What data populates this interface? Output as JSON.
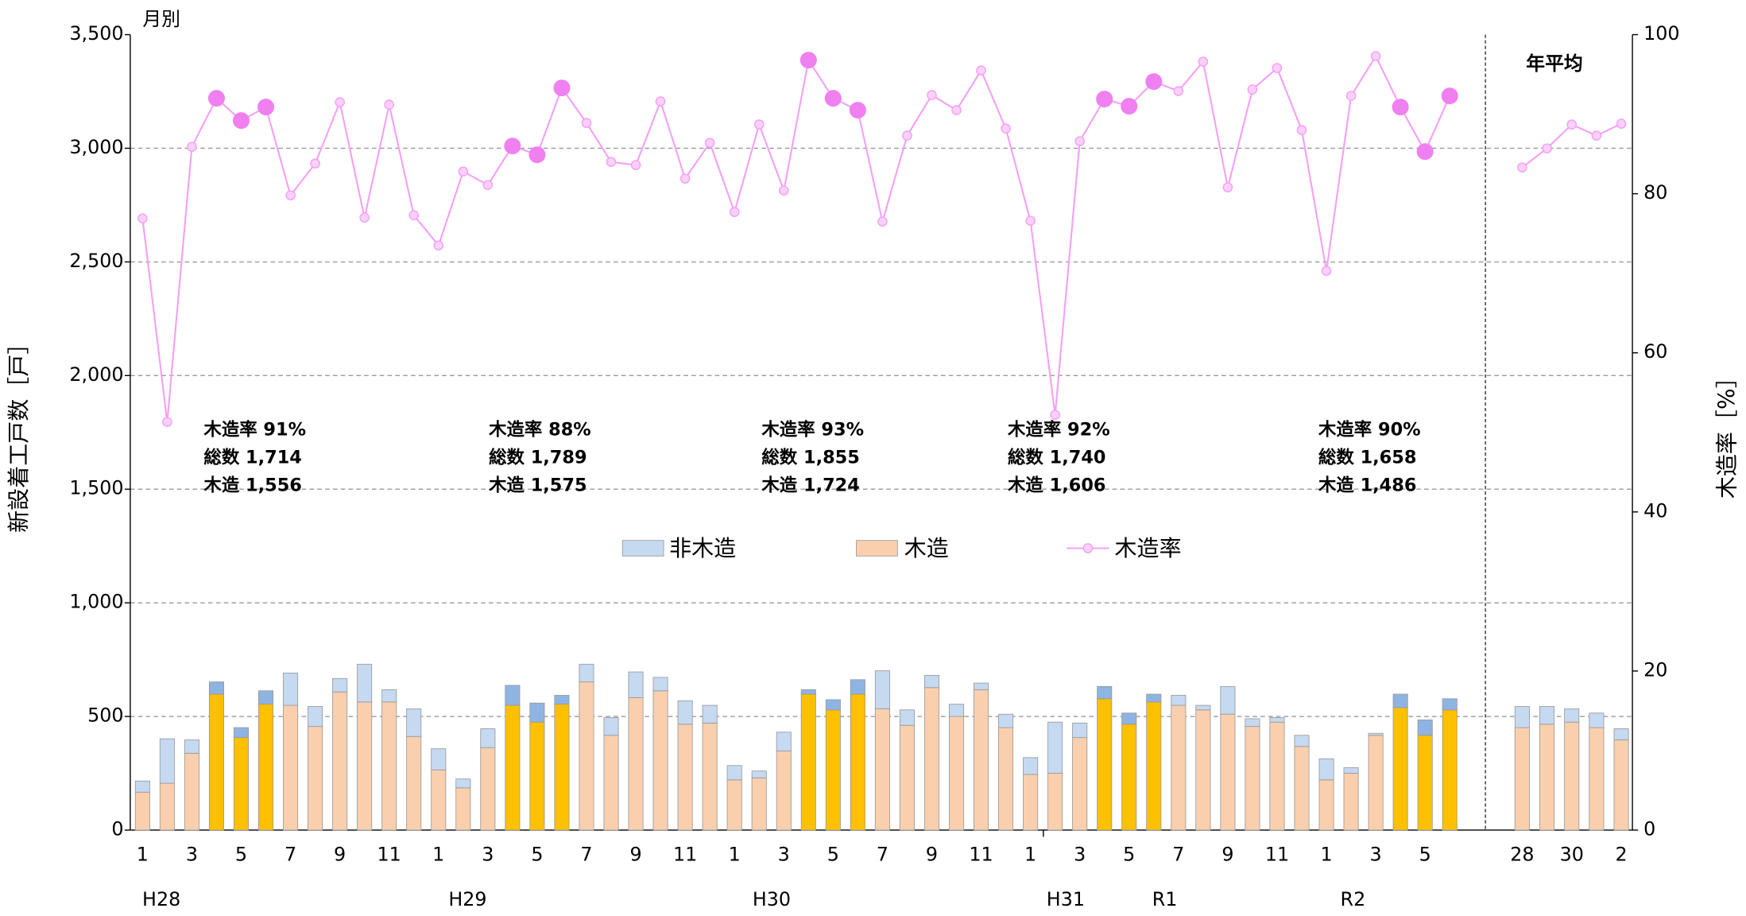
{
  "chart_data": {
    "type": "bar",
    "monthly_label": "月別",
    "annual_label": "年平均",
    "ylabel": "新設着工戸数［戸］",
    "y2label": "木造率［%］",
    "categories": [
      "1",
      null,
      "3",
      null,
      "5",
      null,
      "7",
      null,
      "9",
      null,
      "11",
      null,
      "1",
      null,
      "3",
      null,
      "5",
      null,
      "7",
      null,
      "9",
      null,
      "11",
      null,
      "1",
      null,
      "3",
      null,
      "5",
      null,
      "7",
      null,
      "9",
      null,
      "11",
      null,
      "1",
      null,
      "3",
      null,
      "5",
      null,
      "7",
      null,
      "9",
      null,
      "11",
      null,
      "1",
      null,
      "3",
      null,
      "5",
      null
    ],
    "annual_categories": [
      "28",
      null,
      "30",
      null,
      "2"
    ],
    "period_labels": [
      "H28",
      "H29",
      "H30",
      "H31",
      "R1",
      "R2"
    ],
    "highlight": [
      3,
      4,
      5,
      15,
      16,
      17,
      27,
      28,
      29,
      39,
      40,
      41,
      51,
      52,
      53
    ],
    "series": [
      {
        "name": "非木造",
        "color": "#c5d9f1",
        "highlight_color": "#8eb4e3",
        "values": [
          49,
          196,
          59,
          54,
          44,
          59,
          142,
          88,
          59,
          166,
          54,
          122,
          93,
          39,
          83,
          88,
          84,
          39,
          78,
          78,
          113,
          59,
          103,
          78,
          63,
          30,
          83,
          20,
          45,
          64,
          167,
          68,
          54,
          54,
          29,
          59,
          74,
          225,
          64,
          54,
          49,
          34,
          44,
          20,
          122,
          34,
          20,
          49,
          93,
          25,
          9,
          59,
          68,
          49
        ],
        "annual_values": [
          93,
          78,
          59,
          64,
          49
        ]
      },
      {
        "name": "木造",
        "color": "#f9cfae",
        "highlight_color": "#ffc000",
        "values": [
          167,
          206,
          338,
          598,
          407,
          554,
          549,
          456,
          608,
          564,
          564,
          412,
          265,
          186,
          363,
          549,
          475,
          554,
          652,
          417,
          583,
          613,
          466,
          471,
          221,
          230,
          348,
          598,
          529,
          598,
          534,
          461,
          627,
          500,
          618,
          451,
          245,
          250,
          407,
          578,
          466,
          564,
          549,
          529,
          510,
          456,
          475,
          368,
          221,
          250,
          417,
          539,
          417,
          529
        ],
        "annual_values": [
          451,
          466,
          475,
          451,
          397
        ]
      },
      {
        "name": "木造率",
        "color": "#f5a0f5",
        "highlight_color": "#f080f0",
        "axis": "y2",
        "values": [
          76.9,
          51.3,
          85.9,
          92.0,
          89.2,
          90.9,
          79.8,
          83.8,
          91.5,
          77.0,
          91.2,
          77.3,
          73.5,
          82.8,
          81.1,
          86.0,
          84.9,
          93.3,
          88.9,
          84.0,
          83.6,
          91.6,
          81.9,
          86.4,
          77.7,
          88.7,
          80.4,
          96.8,
          92.0,
          90.5,
          76.5,
          87.3,
          92.4,
          90.5,
          95.5,
          88.2,
          76.6,
          52.2,
          86.6,
          91.9,
          91.0,
          94.1,
          92.9,
          96.6,
          80.8,
          93.1,
          95.8,
          88.0,
          70.3,
          92.3,
          97.3,
          90.9,
          85.3,
          92.3
        ],
        "annual_values": [
          83.3,
          85.7,
          88.7,
          87.3,
          88.8
        ]
      }
    ],
    "annotations": [
      [
        "木造率 91%",
        "総数 1,714",
        "木造 1,556"
      ],
      [
        "木造率 88%",
        "総数 1,789",
        "木造 1,575"
      ],
      [
        "木造率 93%",
        "総数 1,855",
        "木造 1,724"
      ],
      [
        "木造率 92%",
        "総数 1,740",
        "木造 1,606"
      ],
      [
        "木造率 90%",
        "総数 1,658",
        "木造 1,486"
      ]
    ],
    "ylim": [
      0,
      3500
    ],
    "yticks": [
      0,
      {
        "value": 500,
        "label": "500"
      },
      {
        "value": 1000,
        "label": "1,000"
      },
      {
        "value": 1500,
        "label": "1,500"
      },
      {
        "value": 2000,
        "label": "2,000"
      },
      {
        "value": 2500,
        "label": "2,500"
      },
      {
        "value": 3000,
        "label": "3,000"
      },
      {
        "value": 3500,
        "label": "3,500"
      }
    ],
    "y2lim": [
      0,
      100
    ],
    "y2ticks": [
      0,
      20,
      40,
      60,
      80,
      100
    ],
    "grid": true
  }
}
